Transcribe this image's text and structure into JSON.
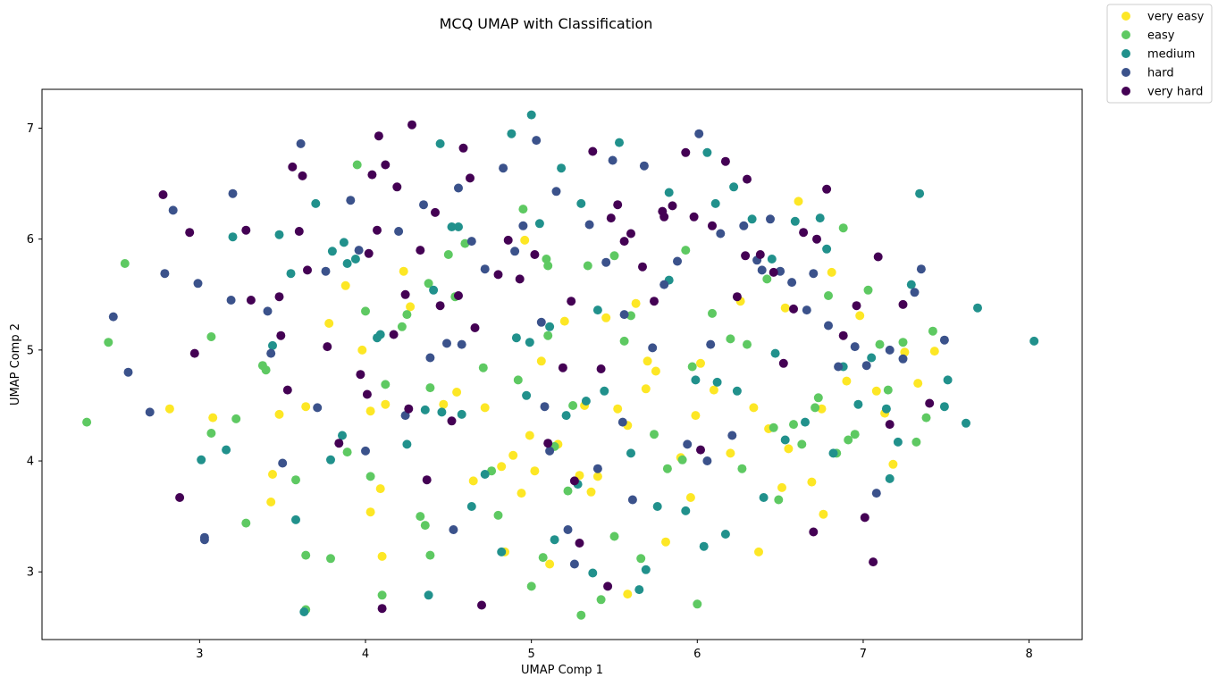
{
  "chart_data": {
    "type": "scatter",
    "title": "MCQ UMAP with Classification",
    "xlabel": "UMAP Comp 1",
    "ylabel": "UMAP Comp 2",
    "xlim": [
      2.05,
      8.32
    ],
    "ylim": [
      2.39,
      7.35
    ],
    "xticks": [
      3,
      4,
      5,
      6,
      7,
      8
    ],
    "yticks": [
      3,
      4,
      5,
      6,
      7
    ],
    "grid": false,
    "legend_position": "top-right outside",
    "series": [
      {
        "name": "very easy",
        "color": "#fde725",
        "x": [
          2.82,
          3.08,
          3.43,
          3.44,
          3.48,
          3.64,
          3.78,
          3.88,
          3.98,
          4.03,
          4.03,
          4.09,
          4.1,
          4.12,
          4.23,
          4.27,
          4.47,
          4.55,
          4.65,
          4.72,
          4.84,
          4.89,
          4.94,
          4.96,
          4.99,
          5.02,
          5.06,
          5.11,
          5.16,
          5.2,
          5.29,
          5.36,
          5.45,
          5.52,
          5.58,
          5.63,
          5.69,
          5.7,
          5.75,
          5.81,
          5.9,
          5.99,
          6.1,
          6.2,
          6.26,
          6.34,
          6.43,
          6.51,
          6.53,
          6.55,
          6.61,
          6.69,
          6.75,
          6.81,
          6.9,
          6.98,
          7.08,
          7.18,
          7.25,
          7.33,
          7.43,
          5.58,
          5.96,
          6.37,
          6.76,
          7.13,
          4.82,
          5.4,
          6.02,
          5.32
        ],
        "y": [
          4.47,
          4.39,
          3.63,
          3.88,
          4.42,
          4.49,
          5.24,
          5.58,
          5.0,
          4.45,
          3.54,
          3.75,
          3.14,
          4.51,
          5.71,
          5.39,
          4.51,
          4.62,
          3.82,
          4.48,
          3.18,
          4.05,
          3.71,
          5.99,
          4.23,
          3.91,
          4.9,
          3.07,
          4.15,
          5.26,
          3.87,
          3.72,
          5.29,
          4.47,
          4.32,
          5.42,
          4.65,
          4.9,
          4.81,
          3.27,
          4.03,
          4.41,
          4.64,
          4.07,
          5.44,
          4.48,
          4.29,
          3.76,
          5.38,
          4.11,
          6.34,
          3.81,
          4.47,
          5.7,
          4.72,
          5.31,
          4.63,
          3.97,
          4.98,
          4.7,
          4.99,
          2.8,
          3.67,
          3.18,
          3.52,
          4.43,
          3.95,
          3.86,
          4.88,
          4.5
        ]
      },
      {
        "name": "easy",
        "color": "#5ec962",
        "x": [
          2.32,
          2.45,
          2.55,
          3.07,
          3.07,
          3.22,
          3.28,
          3.38,
          3.4,
          3.58,
          3.64,
          3.64,
          3.79,
          3.89,
          4.0,
          4.03,
          4.1,
          4.12,
          4.25,
          4.33,
          4.36,
          4.39,
          4.39,
          4.5,
          4.54,
          4.6,
          4.71,
          4.76,
          4.8,
          4.92,
          4.95,
          5.0,
          5.07,
          5.09,
          5.1,
          5.14,
          5.22,
          5.25,
          5.3,
          5.34,
          5.42,
          5.5,
          5.56,
          5.6,
          5.66,
          5.74,
          5.82,
          5.91,
          5.97,
          6.0,
          6.09,
          6.2,
          6.27,
          6.3,
          6.42,
          6.49,
          6.58,
          6.63,
          6.71,
          6.79,
          6.84,
          6.91,
          6.95,
          7.03,
          7.1,
          7.15,
          7.24,
          7.32,
          7.38,
          7.42,
          4.22,
          4.38,
          5.93,
          6.46,
          6.88,
          3.95,
          5.1,
          5.5,
          6.73
        ],
        "y": [
          4.35,
          5.07,
          5.78,
          5.12,
          4.25,
          4.38,
          3.44,
          4.86,
          4.82,
          3.83,
          3.15,
          2.66,
          3.12,
          4.08,
          5.35,
          3.86,
          2.79,
          4.69,
          5.32,
          3.5,
          3.42,
          4.66,
          3.15,
          5.86,
          5.48,
          5.96,
          4.84,
          3.91,
          3.51,
          4.73,
          6.27,
          2.87,
          3.13,
          5.82,
          5.13,
          4.13,
          3.73,
          4.5,
          2.61,
          5.76,
          2.75,
          3.32,
          5.08,
          5.31,
          3.12,
          4.24,
          3.93,
          4.01,
          4.85,
          2.71,
          5.33,
          5.1,
          3.93,
          5.05,
          5.64,
          3.65,
          4.33,
          4.15,
          4.48,
          5.49,
          4.07,
          4.19,
          4.24,
          5.54,
          5.05,
          4.64,
          5.07,
          4.17,
          4.39,
          5.17,
          5.21,
          5.6,
          5.9,
          4.3,
          6.1,
          6.67,
          5.76,
          5.85,
          4.57
        ]
      },
      {
        "name": "medium",
        "color": "#21918c",
        "x": [
          3.01,
          3.16,
          3.2,
          3.44,
          3.48,
          3.55,
          3.58,
          3.63,
          3.7,
          3.79,
          3.8,
          3.86,
          3.87,
          3.94,
          4.07,
          4.09,
          4.25,
          4.36,
          4.38,
          4.41,
          4.45,
          4.52,
          4.58,
          4.64,
          4.72,
          4.82,
          4.88,
          4.91,
          4.97,
          5.0,
          5.05,
          5.11,
          5.14,
          5.18,
          5.28,
          5.3,
          5.37,
          5.44,
          5.53,
          5.6,
          5.65,
          5.69,
          5.76,
          5.83,
          5.93,
          5.99,
          6.04,
          6.12,
          6.17,
          6.24,
          6.33,
          6.4,
          6.47,
          6.53,
          6.59,
          6.65,
          6.74,
          6.82,
          6.88,
          6.97,
          7.05,
          7.14,
          7.21,
          7.29,
          7.34,
          7.49,
          7.51,
          7.62,
          7.69,
          8.03,
          4.46,
          4.99,
          5.33,
          6.06,
          6.45,
          6.78,
          7.16,
          5.4,
          6.22,
          4.56,
          3.89,
          5.83,
          6.11,
          5.21
        ],
        "y": [
          4.01,
          4.1,
          6.02,
          5.04,
          6.04,
          5.69,
          3.47,
          2.64,
          6.32,
          4.01,
          5.89,
          4.23,
          5.97,
          5.82,
          5.11,
          5.14,
          4.15,
          4.46,
          2.79,
          5.54,
          6.86,
          6.11,
          4.42,
          3.59,
          3.88,
          3.18,
          6.95,
          5.11,
          4.59,
          7.12,
          6.14,
          5.21,
          3.29,
          6.64,
          3.79,
          6.32,
          2.99,
          4.63,
          6.87,
          4.07,
          2.84,
          3.02,
          3.59,
          5.63,
          3.55,
          4.73,
          3.23,
          4.71,
          3.34,
          4.63,
          6.18,
          3.67,
          4.97,
          4.19,
          6.16,
          4.35,
          6.19,
          4.07,
          4.85,
          4.51,
          4.93,
          4.47,
          4.17,
          5.59,
          6.41,
          4.49,
          4.73,
          4.34,
          5.38,
          5.08,
          4.44,
          5.07,
          4.54,
          6.78,
          5.82,
          5.91,
          3.84,
          5.36,
          6.47,
          6.11,
          5.78,
          6.42,
          6.32,
          4.41
        ]
      },
      {
        "name": "hard",
        "color": "#3b528b",
        "x": [
          2.48,
          2.57,
          2.7,
          2.79,
          2.84,
          2.99,
          3.03,
          3.19,
          3.2,
          3.41,
          3.43,
          3.5,
          3.61,
          3.71,
          3.76,
          3.91,
          3.96,
          4.0,
          4.2,
          4.24,
          4.35,
          4.39,
          4.49,
          4.56,
          4.58,
          4.64,
          4.72,
          4.83,
          4.9,
          4.95,
          5.03,
          5.08,
          5.11,
          5.15,
          5.26,
          5.35,
          5.4,
          5.45,
          5.49,
          5.55,
          5.61,
          5.68,
          5.73,
          5.8,
          5.88,
          5.94,
          6.01,
          6.08,
          6.14,
          6.21,
          6.28,
          6.36,
          6.44,
          6.5,
          6.57,
          6.66,
          6.7,
          6.79,
          6.85,
          6.95,
          7.02,
          7.08,
          7.16,
          7.24,
          7.31,
          7.35,
          7.49,
          5.06,
          5.56,
          6.39,
          6.06,
          5.22,
          4.53,
          3.03
        ],
        "y": [
          5.3,
          4.8,
          4.44,
          5.69,
          6.26,
          5.6,
          3.31,
          5.45,
          6.41,
          5.35,
          4.97,
          3.98,
          6.86,
          4.48,
          5.71,
          6.35,
          5.9,
          4.09,
          6.07,
          4.41,
          6.31,
          4.93,
          5.06,
          6.46,
          5.05,
          5.98,
          5.73,
          6.64,
          5.89,
          6.12,
          6.89,
          4.49,
          4.09,
          6.43,
          3.07,
          6.13,
          3.93,
          5.79,
          6.71,
          4.35,
          3.65,
          6.66,
          5.02,
          5.59,
          5.8,
          4.15,
          6.95,
          5.05,
          6.05,
          4.23,
          6.12,
          5.81,
          6.18,
          5.71,
          5.61,
          5.36,
          5.69,
          5.22,
          4.85,
          5.03,
          4.86,
          3.71,
          5.0,
          4.92,
          5.52,
          5.73,
          5.09,
          5.25,
          5.32,
          5.72,
          4.0,
          3.38,
          3.38,
          3.29
        ]
      },
      {
        "name": "very hard",
        "color": "#440154",
        "x": [
          2.78,
          2.88,
          2.94,
          2.97,
          3.28,
          3.31,
          3.48,
          3.49,
          3.53,
          3.56,
          3.6,
          3.62,
          3.65,
          3.77,
          3.84,
          3.97,
          4.01,
          4.02,
          4.04,
          4.07,
          4.08,
          4.1,
          4.12,
          4.17,
          4.19,
          4.24,
          4.26,
          4.28,
          4.33,
          4.37,
          4.42,
          4.45,
          4.52,
          4.56,
          4.59,
          4.63,
          4.66,
          4.7,
          4.8,
          4.86,
          4.93,
          5.02,
          5.1,
          5.19,
          5.24,
          5.29,
          5.37,
          5.42,
          5.48,
          5.52,
          5.56,
          5.6,
          5.67,
          5.74,
          5.79,
          5.85,
          5.93,
          5.98,
          6.02,
          6.09,
          6.17,
          6.24,
          6.3,
          6.38,
          6.46,
          6.52,
          6.58,
          6.64,
          6.72,
          6.78,
          6.88,
          6.96,
          7.01,
          7.09,
          7.16,
          7.24,
          7.4,
          5.46,
          5.26,
          5.8,
          6.29,
          6.7,
          7.06
        ],
        "y": [
          6.4,
          3.67,
          6.06,
          4.97,
          6.08,
          5.45,
          5.48,
          5.13,
          4.64,
          6.65,
          6.07,
          6.57,
          5.72,
          5.03,
          4.16,
          4.78,
          4.6,
          5.87,
          6.58,
          6.08,
          6.93,
          2.67,
          6.67,
          5.14,
          6.47,
          5.5,
          4.47,
          7.03,
          5.9,
          3.83,
          6.24,
          5.4,
          4.36,
          5.49,
          6.82,
          6.55,
          5.2,
          2.7,
          5.68,
          5.99,
          5.64,
          5.86,
          4.16,
          4.84,
          5.44,
          3.26,
          6.79,
          4.83,
          6.19,
          6.31,
          5.98,
          6.05,
          5.75,
          5.44,
          6.25,
          6.3,
          6.78,
          6.2,
          4.1,
          6.12,
          6.7,
          5.48,
          6.54,
          5.86,
          5.7,
          4.88,
          5.37,
          6.06,
          6.0,
          6.45,
          5.13,
          5.4,
          3.49,
          5.84,
          4.33,
          5.41,
          4.52,
          2.87,
          3.82,
          6.2,
          5.85,
          3.36,
          3.09
        ]
      }
    ]
  }
}
